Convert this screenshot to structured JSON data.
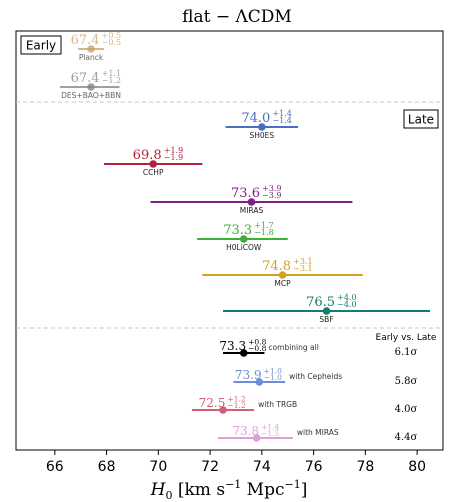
{
  "chart_data": {
    "type": "scatter",
    "title": "flat − ΛCDM",
    "xlabel": "H0 [km s−1 Mpc−1]",
    "xlim": [
      64.5,
      81.0
    ],
    "xticks": [
      "66",
      "68",
      "70",
      "72",
      "74",
      "76",
      "78",
      "80"
    ],
    "xtick_values": [
      66,
      68,
      70,
      72,
      74,
      76,
      78,
      80
    ],
    "grid": false,
    "sections": [
      {
        "label": "Early",
        "placement": "top-left"
      },
      {
        "label": "Late",
        "placement": "right"
      }
    ],
    "measurements": [
      {
        "group": "early",
        "name": "Planck",
        "value": 67.4,
        "err_plus": 0.5,
        "err_minus": 0.5,
        "value_text": "67.4",
        "plus_text": "+0.5",
        "minus_text": "−0.5",
        "color": "#c8a060",
        "faded": true
      },
      {
        "group": "early",
        "name": "DES+BAO+BBN",
        "value": 67.4,
        "err_plus": 1.1,
        "err_minus": 1.2,
        "value_text": "67.4",
        "plus_text": "+1.1",
        "minus_text": "−1.2",
        "color": "#808080",
        "faded": true
      },
      {
        "group": "late",
        "name": "SH0ES",
        "value": 74.0,
        "err_plus": 1.4,
        "err_minus": 1.4,
        "value_text": "74.0",
        "plus_text": "+1.4",
        "minus_text": "−1.4",
        "color": "#4a6fc0",
        "faded": false
      },
      {
        "group": "late",
        "name": "CCHP",
        "value": 69.8,
        "err_plus": 1.9,
        "err_minus": 1.9,
        "value_text": "69.8",
        "plus_text": "+1.9",
        "minus_text": "−1.9",
        "color": "#b5203a",
        "faded": false
      },
      {
        "group": "late",
        "name": "MIRAS",
        "value": 73.6,
        "err_plus": 3.9,
        "err_minus": 3.9,
        "value_text": "73.6",
        "plus_text": "+3.9",
        "minus_text": "−3.9",
        "color": "#7e1f86",
        "faded": false
      },
      {
        "group": "late",
        "name": "H0LiCOW",
        "value": 73.3,
        "err_plus": 1.7,
        "err_minus": 1.8,
        "value_text": "73.3",
        "plus_text": "+1.7",
        "minus_text": "−1.8",
        "color": "#3bb035",
        "faded": false
      },
      {
        "group": "late",
        "name": "MCP",
        "value": 74.8,
        "err_plus": 3.1,
        "err_minus": 3.1,
        "value_text": "74.8",
        "plus_text": "+3.1",
        "minus_text": "−3.1",
        "color": "#d4a020",
        "faded": false
      },
      {
        "group": "late",
        "name": "SBF",
        "value": 76.5,
        "err_plus": 4.0,
        "err_minus": 4.0,
        "value_text": "76.5",
        "plus_text": "+4.0",
        "minus_text": "−4.0",
        "color": "#177a6e",
        "faded": false
      }
    ],
    "combined_header": "Early vs. Late",
    "combined": [
      {
        "name": "combining all",
        "value": 73.3,
        "err_plus": 0.8,
        "err_minus": 0.8,
        "value_text": "73.3",
        "plus_text": "+0.8",
        "minus_text": "−0.8",
        "color": "#000000",
        "tension": "6.1σ"
      },
      {
        "name": "with Cepheids",
        "value": 73.9,
        "err_plus": 1.0,
        "err_minus": 1.0,
        "value_text": "73.9",
        "plus_text": "+1.0",
        "minus_text": "−1.0",
        "color": "#6a8fd8",
        "tension": "5.8σ"
      },
      {
        "name": "with TRGB",
        "value": 72.5,
        "err_plus": 1.2,
        "err_minus": 1.2,
        "value_text": "72.5",
        "plus_text": "+1.2",
        "minus_text": "−1.2",
        "color": "#d06072",
        "tension": "4.0σ"
      },
      {
        "name": "with MIRAS",
        "value": 73.8,
        "err_plus": 1.4,
        "err_minus": 1.5,
        "value_text": "73.8",
        "plus_text": "+1.4",
        "minus_text": "−1.5",
        "color": "#dba0da",
        "tension": "4.4σ"
      }
    ]
  }
}
